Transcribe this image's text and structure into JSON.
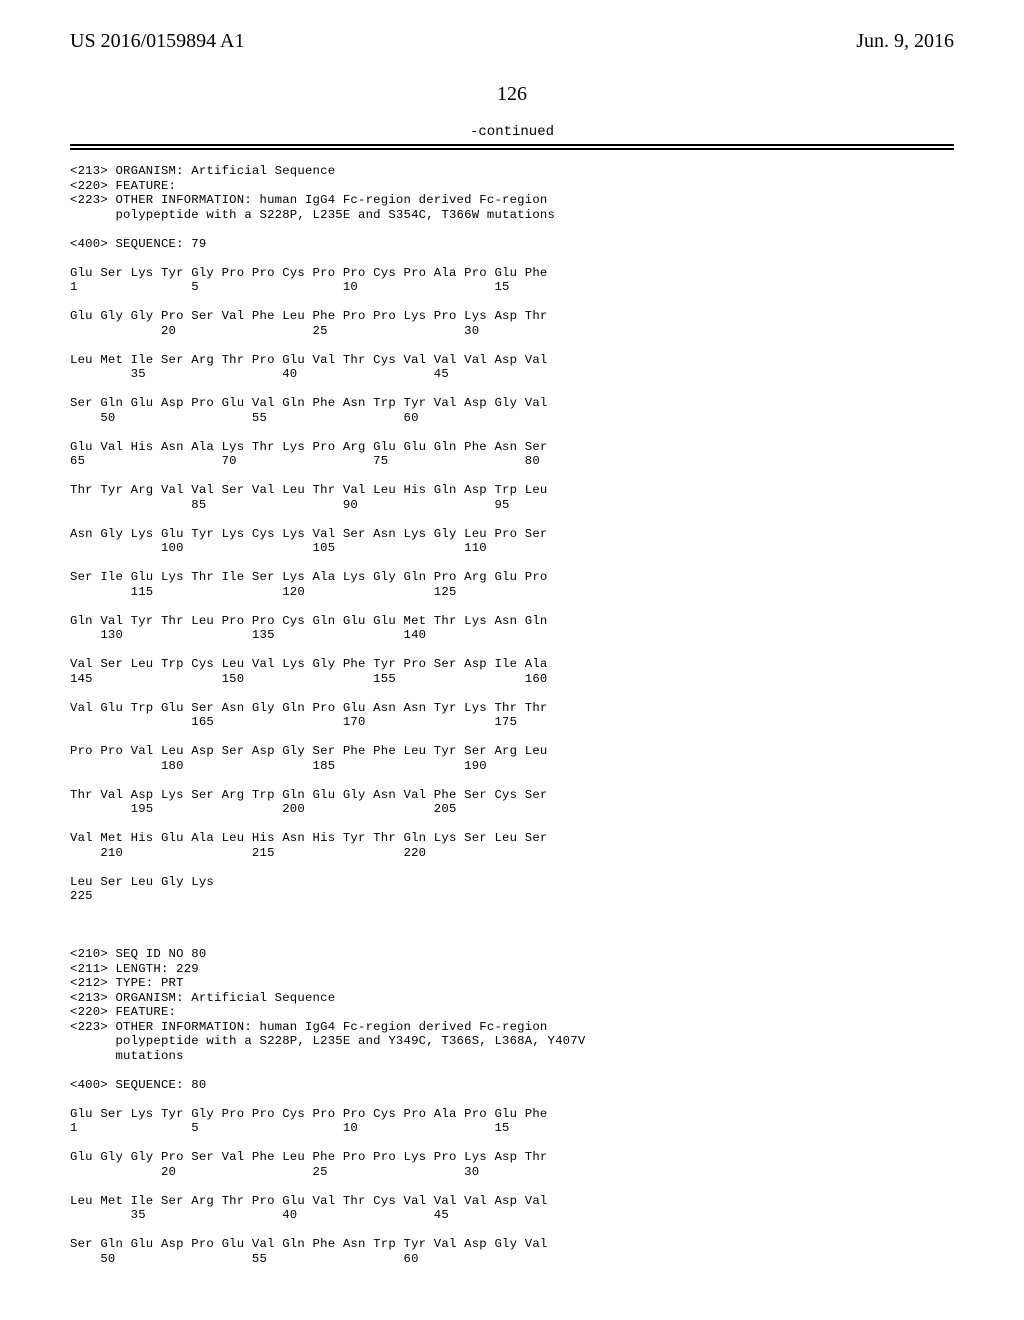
{
  "header": {
    "left": "US 2016/0159894 A1",
    "right": "Jun. 9, 2016"
  },
  "page_number": "126",
  "continued_label": "-continued",
  "seq_meta_top": [
    "<213> ORGANISM: Artificial Sequence",
    "<220> FEATURE:",
    "<223> OTHER INFORMATION: human IgG4 Fc-region derived Fc-region",
    "      polypeptide with a S228P, L235E and S354C, T366W mutations",
    "",
    "<400> SEQUENCE: 79",
    ""
  ],
  "sequence_79": [
    {
      "aa": "Glu Ser Lys Tyr Gly Pro Pro Cys Pro Pro Cys Pro Ala Pro Glu Phe",
      "nums": "1               5                   10                  15"
    },
    {
      "aa": "Glu Gly Gly Pro Ser Val Phe Leu Phe Pro Pro Lys Pro Lys Asp Thr",
      "nums": "            20                  25                  30"
    },
    {
      "aa": "Leu Met Ile Ser Arg Thr Pro Glu Val Thr Cys Val Val Val Asp Val",
      "nums": "        35                  40                  45"
    },
    {
      "aa": "Ser Gln Glu Asp Pro Glu Val Gln Phe Asn Trp Tyr Val Asp Gly Val",
      "nums": "    50                  55                  60"
    },
    {
      "aa": "Glu Val His Asn Ala Lys Thr Lys Pro Arg Glu Glu Gln Phe Asn Ser",
      "nums": "65                  70                  75                  80"
    },
    {
      "aa": "Thr Tyr Arg Val Val Ser Val Leu Thr Val Leu His Gln Asp Trp Leu",
      "nums": "                85                  90                  95"
    },
    {
      "aa": "Asn Gly Lys Glu Tyr Lys Cys Lys Val Ser Asn Lys Gly Leu Pro Ser",
      "nums": "            100                 105                 110"
    },
    {
      "aa": "Ser Ile Glu Lys Thr Ile Ser Lys Ala Lys Gly Gln Pro Arg Glu Pro",
      "nums": "        115                 120                 125"
    },
    {
      "aa": "Gln Val Tyr Thr Leu Pro Pro Cys Gln Glu Glu Met Thr Lys Asn Gln",
      "nums": "    130                 135                 140"
    },
    {
      "aa": "Val Ser Leu Trp Cys Leu Val Lys Gly Phe Tyr Pro Ser Asp Ile Ala",
      "nums": "145                 150                 155                 160"
    },
    {
      "aa": "Val Glu Trp Glu Ser Asn Gly Gln Pro Glu Asn Asn Tyr Lys Thr Thr",
      "nums": "                165                 170                 175"
    },
    {
      "aa": "Pro Pro Val Leu Asp Ser Asp Gly Ser Phe Phe Leu Tyr Ser Arg Leu",
      "nums": "            180                 185                 190"
    },
    {
      "aa": "Thr Val Asp Lys Ser Arg Trp Gln Glu Gly Asn Val Phe Ser Cys Ser",
      "nums": "        195                 200                 205"
    },
    {
      "aa": "Val Met His Glu Ala Leu His Asn His Tyr Thr Gln Lys Ser Leu Ser",
      "nums": "    210                 215                 220"
    },
    {
      "aa": "Leu Ser Leu Gly Lys",
      "nums": "225"
    }
  ],
  "seq_meta_80": [
    "",
    "",
    "<210> SEQ ID NO 80",
    "<211> LENGTH: 229",
    "<212> TYPE: PRT",
    "<213> ORGANISM: Artificial Sequence",
    "<220> FEATURE:",
    "<223> OTHER INFORMATION: human IgG4 Fc-region derived Fc-region",
    "      polypeptide with a S228P, L235E and Y349C, T366S, L368A, Y407V",
    "      mutations",
    "",
    "<400> SEQUENCE: 80",
    ""
  ],
  "sequence_80": [
    {
      "aa": "Glu Ser Lys Tyr Gly Pro Pro Cys Pro Pro Cys Pro Ala Pro Glu Phe",
      "nums": "1               5                   10                  15"
    },
    {
      "aa": "Glu Gly Gly Pro Ser Val Phe Leu Phe Pro Pro Lys Pro Lys Asp Thr",
      "nums": "            20                  25                  30"
    },
    {
      "aa": "Leu Met Ile Ser Arg Thr Pro Glu Val Thr Cys Val Val Val Asp Val",
      "nums": "        35                  40                  45"
    },
    {
      "aa": "Ser Gln Glu Asp Pro Glu Val Gln Phe Asn Trp Tyr Val Asp Gly Val",
      "nums": "    50                  55                  60"
    }
  ]
}
